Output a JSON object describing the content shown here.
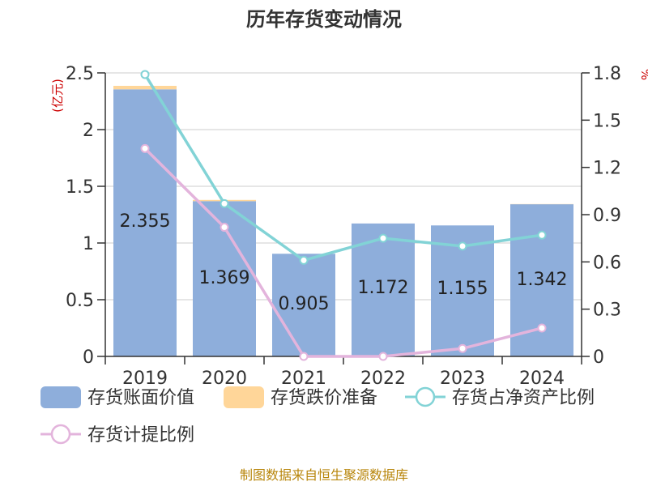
{
  "title": "历年存货变动情况",
  "left_unit": "(亿元)",
  "right_unit": "%",
  "source": "制图数据来自恒生聚源数据库",
  "colors": {
    "book_value": "#8eaedb",
    "impairment": "#ffd699",
    "ratio_net_assets": "#82d3d6",
    "provision_ratio": "#e3b4dc"
  },
  "chart_data": {
    "type": "bar",
    "categories": [
      "2019",
      "2020",
      "2021",
      "2022",
      "2023",
      "2024"
    ],
    "y_left": {
      "range": [
        0,
        2.5
      ],
      "ticks": [
        "0",
        "0.5",
        "1",
        "1.5",
        "2",
        "2.5"
      ]
    },
    "y_right": {
      "range": [
        0,
        1.8
      ],
      "ticks": [
        "0",
        "0.3",
        "0.6",
        "0.9",
        "1.2",
        "1.5",
        "1.8"
      ]
    },
    "series": [
      {
        "name": "存货账面价值",
        "type": "bar",
        "axis": "left",
        "values": [
          2.355,
          1.369,
          0.905,
          1.172,
          1.155,
          1.342
        ],
        "labels": [
          "2.355",
          "1.369",
          "0.905",
          "1.172",
          "1.155",
          "1.342"
        ]
      },
      {
        "name": "存货跌价准备",
        "type": "bar",
        "stack": true,
        "axis": "left",
        "values": [
          0.031,
          0.011,
          0.0,
          0.0,
          0.0,
          0.002
        ]
      },
      {
        "name": "存货占净资产比例",
        "type": "line",
        "axis": "right",
        "values": [
          1.79,
          0.97,
          0.61,
          0.75,
          0.7,
          0.77
        ]
      },
      {
        "name": "存货计提比例",
        "type": "line",
        "axis": "right",
        "values": [
          1.32,
          0.82,
          0.0,
          0.0,
          0.05,
          0.18
        ]
      }
    ]
  }
}
